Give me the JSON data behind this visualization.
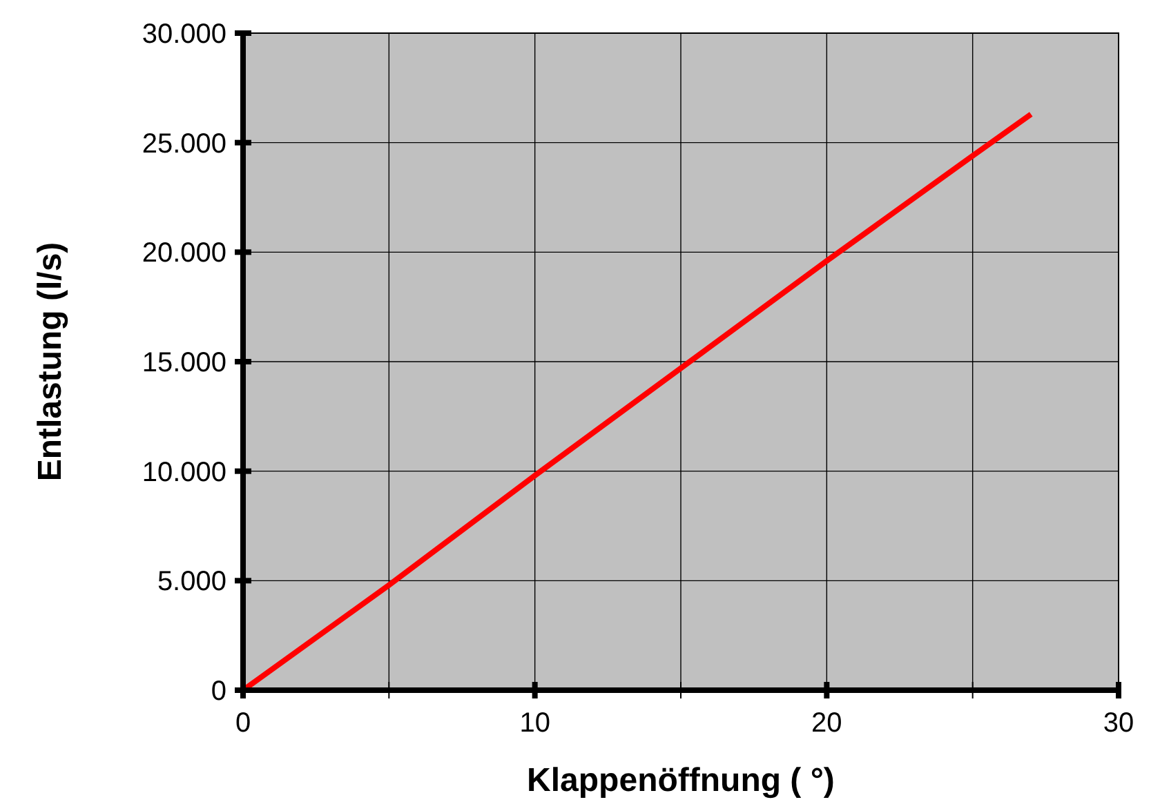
{
  "chart_data": {
    "type": "line",
    "xlabel": "Klappenöffnung ( °)",
    "ylabel": "Entlastung (l/s)",
    "x": [
      0,
      5,
      10,
      15,
      20,
      25,
      27
    ],
    "series": [
      {
        "color": "#ff0000",
        "values": [
          0,
          4800,
          9800,
          14700,
          19600,
          24400,
          26300
        ]
      }
    ],
    "xlim": [
      0,
      30
    ],
    "ylim": [
      0,
      30000
    ],
    "xticks": [
      0,
      {
        "value": 5,
        "label": null
      },
      10,
      {
        "value": 15,
        "label": null
      },
      20,
      {
        "value": 25,
        "label": null
      },
      30
    ],
    "yticks": [
      {
        "value": 0,
        "label": "0"
      },
      {
        "value": 5000,
        "label": "5.000"
      },
      {
        "value": 10000,
        "label": "10.000"
      },
      {
        "value": 15000,
        "label": "15.000"
      },
      {
        "value": 20000,
        "label": "20.000"
      },
      {
        "value": 25000,
        "label": "25.000"
      },
      {
        "value": 30000,
        "label": "30.000"
      }
    ],
    "grid": true,
    "marker": "none",
    "line_style": "solid"
  }
}
